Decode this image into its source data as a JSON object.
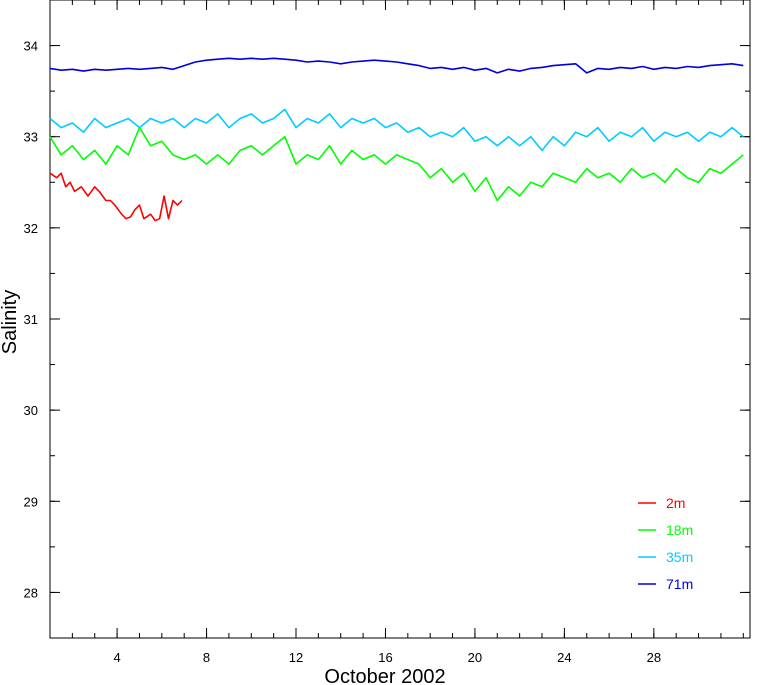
{
  "chart_data": {
    "type": "line",
    "xlabel": "October 2002",
    "ylabel": "Salinity",
    "xlim": [
      1,
      32.3
    ],
    "ylim": [
      27.5,
      34.5
    ],
    "xticks": [
      4,
      8,
      12,
      16,
      20,
      24,
      28
    ],
    "xtick_labels": [
      "4",
      "8",
      "12",
      "16",
      "20",
      "24",
      "28"
    ],
    "yticks": [
      28,
      29,
      30,
      31,
      32,
      33,
      34
    ],
    "ytick_labels": [
      "28",
      "29",
      "30",
      "31",
      "32",
      "33",
      "34"
    ],
    "grid": false,
    "legend_position": "bottom-right",
    "series": [
      {
        "name": "2m",
        "color": "#ff0000",
        "x": [
          1.0,
          1.3,
          1.5,
          1.7,
          1.9,
          2.1,
          2.4,
          2.7,
          3.0,
          3.2,
          3.5,
          3.7,
          3.9,
          4.2,
          4.4,
          4.6,
          4.8,
          5.0,
          5.2,
          5.5,
          5.7,
          5.9,
          6.1,
          6.3,
          6.5,
          6.7,
          6.9
        ],
        "y": [
          32.6,
          32.55,
          32.6,
          32.45,
          32.5,
          32.4,
          32.45,
          32.35,
          32.45,
          32.4,
          32.3,
          32.3,
          32.25,
          32.15,
          32.1,
          32.12,
          32.2,
          32.25,
          32.1,
          32.15,
          32.08,
          32.1,
          32.35,
          32.1,
          32.3,
          32.25,
          32.3
        ]
      },
      {
        "name": "18m",
        "color": "#00ff00",
        "x": [
          1.0,
          1.5,
          2.0,
          2.5,
          3.0,
          3.5,
          4.0,
          4.5,
          5.0,
          5.5,
          6.0,
          6.5,
          7.0,
          7.5,
          8.0,
          8.5,
          9.0,
          9.5,
          10.0,
          10.5,
          11.0,
          11.5,
          12.0,
          12.5,
          13.0,
          13.5,
          14.0,
          14.5,
          15.0,
          15.5,
          16.0,
          16.5,
          17.0,
          17.5,
          18.0,
          18.5,
          19.0,
          19.5,
          20.0,
          20.5,
          21.0,
          21.5,
          22.0,
          22.5,
          23.0,
          23.5,
          24.0,
          24.5,
          25.0,
          25.5,
          26.0,
          26.5,
          27.0,
          27.5,
          28.0,
          28.5,
          29.0,
          29.5,
          30.0,
          30.5,
          31.0,
          31.5,
          32.0
        ],
        "y": [
          33.0,
          32.8,
          32.9,
          32.75,
          32.85,
          32.7,
          32.9,
          32.8,
          33.1,
          32.9,
          32.95,
          32.8,
          32.75,
          32.8,
          32.7,
          32.8,
          32.7,
          32.85,
          32.9,
          32.8,
          32.9,
          33.0,
          32.7,
          32.8,
          32.75,
          32.9,
          32.7,
          32.85,
          32.75,
          32.8,
          32.7,
          32.8,
          32.75,
          32.7,
          32.55,
          32.65,
          32.5,
          32.6,
          32.4,
          32.55,
          32.3,
          32.45,
          32.35,
          32.5,
          32.45,
          32.6,
          32.55,
          32.5,
          32.65,
          32.55,
          32.6,
          32.5,
          32.65,
          32.55,
          32.6,
          32.5,
          32.65,
          32.55,
          32.5,
          32.65,
          32.6,
          32.7,
          32.8
        ]
      },
      {
        "name": "35m",
        "color": "#00ccff",
        "x": [
          1.0,
          1.5,
          2.0,
          2.5,
          3.0,
          3.5,
          4.0,
          4.5,
          5.0,
          5.5,
          6.0,
          6.5,
          7.0,
          7.5,
          8.0,
          8.5,
          9.0,
          9.5,
          10.0,
          10.5,
          11.0,
          11.5,
          12.0,
          12.5,
          13.0,
          13.5,
          14.0,
          14.5,
          15.0,
          15.5,
          16.0,
          16.5,
          17.0,
          17.5,
          18.0,
          18.5,
          19.0,
          19.5,
          20.0,
          20.5,
          21.0,
          21.5,
          22.0,
          22.5,
          23.0,
          23.5,
          24.0,
          24.5,
          25.0,
          25.5,
          26.0,
          26.5,
          27.0,
          27.5,
          28.0,
          28.5,
          29.0,
          29.5,
          30.0,
          30.5,
          31.0,
          31.5,
          32.0
        ],
        "y": [
          33.2,
          33.1,
          33.15,
          33.05,
          33.2,
          33.1,
          33.15,
          33.2,
          33.1,
          33.2,
          33.15,
          33.2,
          33.1,
          33.2,
          33.15,
          33.25,
          33.1,
          33.2,
          33.25,
          33.15,
          33.2,
          33.3,
          33.1,
          33.2,
          33.15,
          33.25,
          33.1,
          33.2,
          33.15,
          33.2,
          33.1,
          33.15,
          33.05,
          33.1,
          33.0,
          33.05,
          33.0,
          33.1,
          32.95,
          33.0,
          32.9,
          33.0,
          32.9,
          33.0,
          32.85,
          33.0,
          32.9,
          33.05,
          33.0,
          33.1,
          32.95,
          33.05,
          33.0,
          33.1,
          32.95,
          33.05,
          33.0,
          33.05,
          32.95,
          33.05,
          33.0,
          33.1,
          33.0
        ]
      },
      {
        "name": "71m",
        "color": "#0000dd",
        "x": [
          1.0,
          1.5,
          2.0,
          2.5,
          3.0,
          3.5,
          4.0,
          4.5,
          5.0,
          5.5,
          6.0,
          6.5,
          7.0,
          7.5,
          8.0,
          8.5,
          9.0,
          9.5,
          10.0,
          10.5,
          11.0,
          11.5,
          12.0,
          12.5,
          13.0,
          13.5,
          14.0,
          14.5,
          15.0,
          15.5,
          16.0,
          16.5,
          17.0,
          17.5,
          18.0,
          18.5,
          19.0,
          19.5,
          20.0,
          20.5,
          21.0,
          21.5,
          22.0,
          22.5,
          23.0,
          23.5,
          24.0,
          24.5,
          25.0,
          25.5,
          26.0,
          26.5,
          27.0,
          27.5,
          28.0,
          28.5,
          29.0,
          29.5,
          30.0,
          30.5,
          31.0,
          31.5,
          32.0
        ],
        "y": [
          33.75,
          33.73,
          33.74,
          33.72,
          33.74,
          33.73,
          33.74,
          33.75,
          33.74,
          33.75,
          33.76,
          33.74,
          33.78,
          33.82,
          33.84,
          33.85,
          33.86,
          33.85,
          33.86,
          33.85,
          33.86,
          33.85,
          33.84,
          33.82,
          33.83,
          33.82,
          33.8,
          33.82,
          33.83,
          33.84,
          33.83,
          33.82,
          33.8,
          33.78,
          33.75,
          33.76,
          33.74,
          33.76,
          33.73,
          33.75,
          33.7,
          33.74,
          33.72,
          33.75,
          33.76,
          33.78,
          33.79,
          33.8,
          33.7,
          33.75,
          33.74,
          33.76,
          33.75,
          33.77,
          33.74,
          33.76,
          33.75,
          33.77,
          33.76,
          33.78,
          33.79,
          33.8,
          33.78
        ]
      }
    ]
  }
}
